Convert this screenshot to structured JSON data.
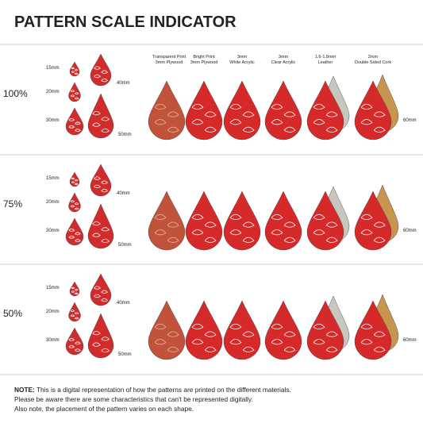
{
  "title": "PATTERN SCALE INDICATOR",
  "materials": [
    [
      "Transparent Print",
      "3mm Plywood"
    ],
    [
      "Bright Print",
      "3mm Plywood"
    ],
    [
      "3mm",
      "White Acrylic"
    ],
    [
      "3mm",
      "Clear Acrylic"
    ],
    [
      "1.6-1.8mm",
      "Leather"
    ],
    [
      "2mm",
      "Double Sided Cork"
    ]
  ],
  "rows": [
    {
      "scale": "100%",
      "sizes": [
        "15mm",
        "20mm",
        "30mm",
        "40mm",
        "50mm"
      ],
      "large_size": "60mm"
    },
    {
      "scale": "75%",
      "sizes": [
        "15mm",
        "20mm",
        "30mm",
        "40mm",
        "50mm"
      ],
      "large_size": "60mm"
    },
    {
      "scale": "50%",
      "sizes": [
        "15mm",
        "20mm",
        "30mm",
        "40mm",
        "50mm"
      ],
      "large_size": "60mm"
    }
  ],
  "note": {
    "label": "NOTE:",
    "lines": [
      " This is a digital representation of how the patterns are printed on the different materials.",
      "Please be aware there are some characteristics that can't be represented digitally.",
      "Also note, the placement of the pattern varies on each shape."
    ]
  }
}
